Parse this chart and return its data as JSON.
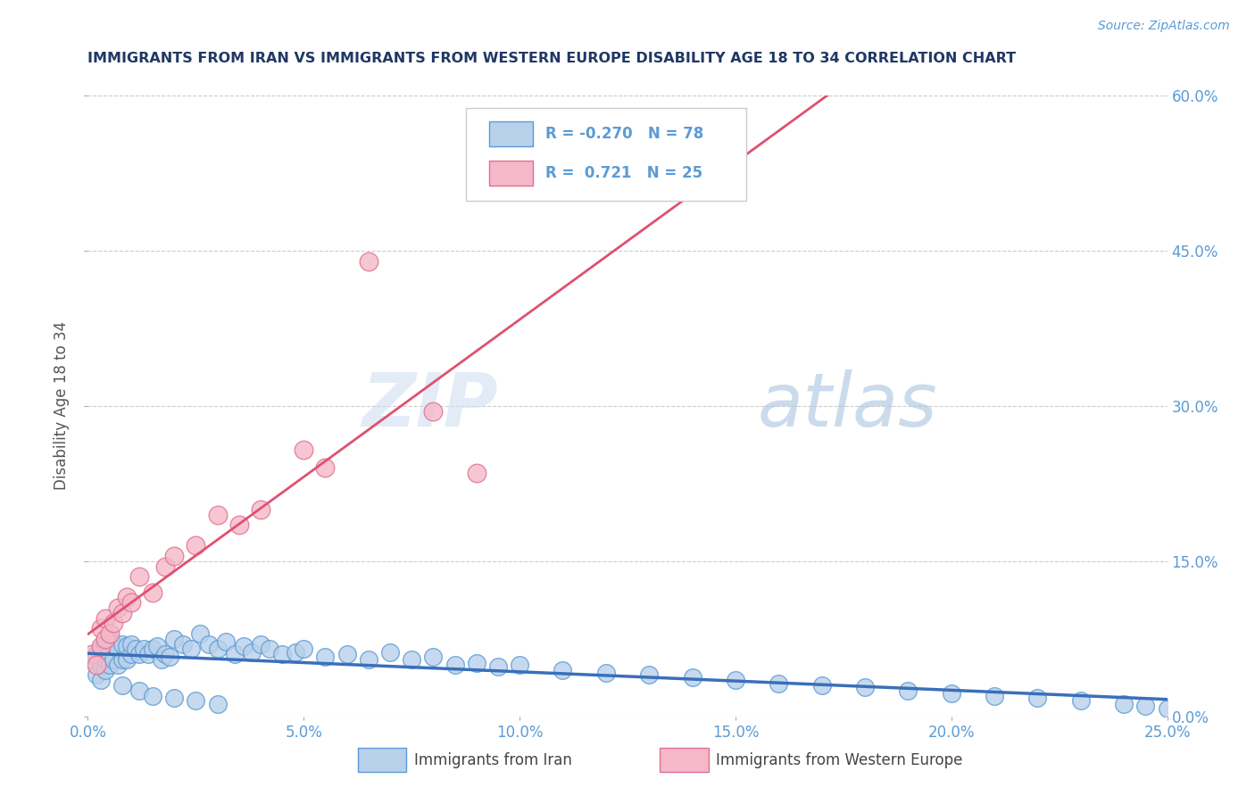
{
  "title": "IMMIGRANTS FROM IRAN VS IMMIGRANTS FROM WESTERN EUROPE DISABILITY AGE 18 TO 34 CORRELATION CHART",
  "source": "Source: ZipAtlas.com",
  "ylabel_label": "Disability Age 18 to 34",
  "xlim": [
    0.0,
    0.25
  ],
  "ylim": [
    0.0,
    0.6
  ],
  "blue_line_color": "#3a6fba",
  "pink_line_color": "#e05070",
  "blue_scatter_face": "#b8d0ea",
  "blue_scatter_edge": "#5b9bd5",
  "pink_scatter_face": "#f4b8c8",
  "pink_scatter_edge": "#e07090",
  "title_color": "#1f3864",
  "axis_color": "#5b9bd5",
  "grid_color": "#cccccc",
  "background_color": "#ffffff",
  "watermark_color": "#c8d8ee",
  "legend_R1": "-0.270",
  "legend_N1": "78",
  "legend_R2": "0.721",
  "legend_N2": "25",
  "blue_points_x": [
    0.001,
    0.002,
    0.002,
    0.003,
    0.003,
    0.003,
    0.004,
    0.004,
    0.004,
    0.005,
    0.005,
    0.005,
    0.006,
    0.006,
    0.007,
    0.007,
    0.008,
    0.008,
    0.009,
    0.009,
    0.01,
    0.01,
    0.011,
    0.012,
    0.013,
    0.014,
    0.015,
    0.016,
    0.017,
    0.018,
    0.019,
    0.02,
    0.022,
    0.024,
    0.026,
    0.028,
    0.03,
    0.032,
    0.034,
    0.036,
    0.038,
    0.04,
    0.042,
    0.045,
    0.048,
    0.05,
    0.055,
    0.06,
    0.065,
    0.07,
    0.075,
    0.08,
    0.085,
    0.09,
    0.095,
    0.1,
    0.11,
    0.12,
    0.13,
    0.14,
    0.15,
    0.16,
    0.17,
    0.18,
    0.19,
    0.2,
    0.21,
    0.22,
    0.23,
    0.24,
    0.245,
    0.25,
    0.008,
    0.012,
    0.015,
    0.02,
    0.025,
    0.03
  ],
  "blue_points_y": [
    0.055,
    0.04,
    0.06,
    0.035,
    0.05,
    0.065,
    0.045,
    0.055,
    0.07,
    0.05,
    0.06,
    0.075,
    0.055,
    0.07,
    0.05,
    0.065,
    0.055,
    0.07,
    0.055,
    0.068,
    0.06,
    0.07,
    0.065,
    0.06,
    0.065,
    0.06,
    0.065,
    0.068,
    0.055,
    0.06,
    0.058,
    0.075,
    0.07,
    0.065,
    0.08,
    0.07,
    0.065,
    0.072,
    0.06,
    0.068,
    0.062,
    0.07,
    0.065,
    0.06,
    0.062,
    0.065,
    0.058,
    0.06,
    0.055,
    0.062,
    0.055,
    0.058,
    0.05,
    0.052,
    0.048,
    0.05,
    0.045,
    0.042,
    0.04,
    0.038,
    0.035,
    0.032,
    0.03,
    0.028,
    0.025,
    0.022,
    0.02,
    0.018,
    0.015,
    0.012,
    0.01,
    0.008,
    0.03,
    0.025,
    0.02,
    0.018,
    0.015,
    0.012
  ],
  "pink_points_x": [
    0.001,
    0.002,
    0.003,
    0.003,
    0.004,
    0.004,
    0.005,
    0.006,
    0.007,
    0.008,
    0.009,
    0.01,
    0.012,
    0.015,
    0.018,
    0.02,
    0.025,
    0.03,
    0.035,
    0.04,
    0.05,
    0.055,
    0.065,
    0.08,
    0.09
  ],
  "pink_points_y": [
    0.06,
    0.05,
    0.068,
    0.085,
    0.075,
    0.095,
    0.08,
    0.09,
    0.105,
    0.1,
    0.115,
    0.11,
    0.135,
    0.12,
    0.145,
    0.155,
    0.165,
    0.195,
    0.185,
    0.2,
    0.258,
    0.24,
    0.44,
    0.295,
    0.235
  ]
}
